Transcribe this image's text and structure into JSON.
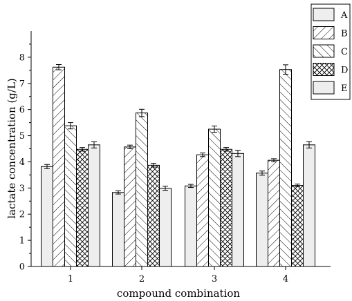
{
  "chart_data": {
    "type": "bar",
    "xlabel": "compound combination",
    "ylabel": "lactate concentration (g/L)",
    "categories": [
      "1",
      "2",
      "3",
      "4"
    ],
    "ylim": [
      0,
      9
    ],
    "yticks": [
      0,
      1,
      2,
      3,
      4,
      5,
      6,
      7,
      8
    ],
    "legend_position": "top-right",
    "series": [
      {
        "name": "A",
        "values": [
          3.82,
          2.83,
          3.08,
          3.57
        ],
        "errors": [
          0.08,
          0.06,
          0.06,
          0.08
        ]
      },
      {
        "name": "B",
        "values": [
          7.62,
          4.57,
          4.27,
          4.06
        ],
        "errors": [
          0.1,
          0.07,
          0.07,
          0.06
        ]
      },
      {
        "name": "C",
        "values": [
          5.38,
          5.87,
          5.25,
          7.53
        ],
        "errors": [
          0.12,
          0.14,
          0.12,
          0.18
        ]
      },
      {
        "name": "D",
        "values": [
          4.48,
          3.87,
          4.48,
          3.1
        ],
        "errors": [
          0.07,
          0.07,
          0.07,
          0.05
        ]
      },
      {
        "name": "E",
        "values": [
          4.65,
          2.99,
          4.32,
          4.65
        ],
        "errors": [
          0.12,
          0.08,
          0.12,
          0.12
        ]
      }
    ],
    "patterns": {
      "A": "solid",
      "B": "diagonal-forward",
      "C": "diagonal-backward",
      "D": "crosshatch",
      "E": "solid"
    },
    "bar_fill": "#eeeeee",
    "bar_stroke": "#000000"
  }
}
